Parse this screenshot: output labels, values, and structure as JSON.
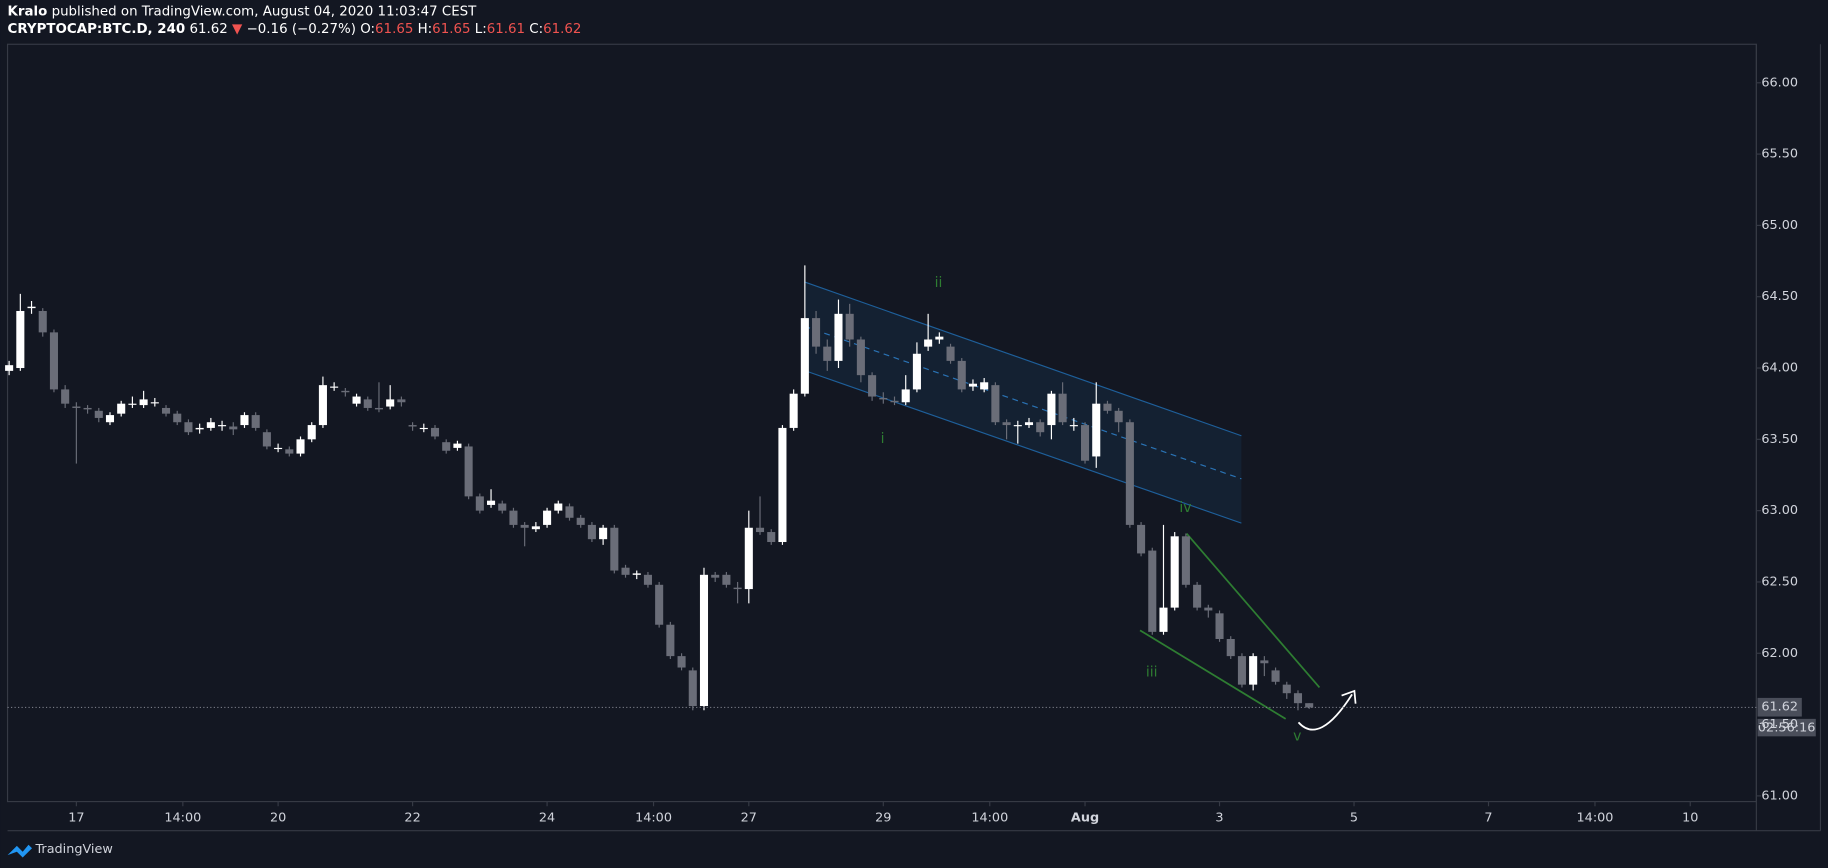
{
  "chart_data": {
    "type": "candlestick",
    "author": "Kralo",
    "published": "published on TradingView.com, August 04, 2020 11:03:47 CEST",
    "symbol": "CRYPTOCAP:BTC.D, 240",
    "last": "61.62",
    "change_arrow": "▼",
    "change": "−0.16 (−0.27%)",
    "ohlc": [
      {
        "label": "O:",
        "value": "61.65"
      },
      {
        "label": "H:",
        "value": "61.65"
      },
      {
        "label": "L:",
        "value": "61.61"
      },
      {
        "label": "C:",
        "value": "61.62"
      }
    ],
    "price_label": "61.62",
    "countdown": "02:56:16",
    "brand": "TradingView",
    "annotations": [
      "i",
      "ii",
      "iii",
      "iv",
      "v"
    ],
    "up_color": "#ffffff",
    "down_color": "#6a6d78",
    "grid": false,
    "xlim": [
      -0.14,
      155.9
    ],
    "ylim": [
      60.96,
      66.27
    ],
    "xticks": [
      {
        "value": 6,
        "label": "17"
      },
      {
        "value": 15.5,
        "label": "14:00"
      },
      {
        "value": 24,
        "label": "20"
      },
      {
        "value": 36,
        "label": "22"
      },
      {
        "value": 48,
        "label": "24"
      },
      {
        "value": 57.5,
        "label": "14:00"
      },
      {
        "value": 66,
        "label": "27"
      },
      {
        "value": 78,
        "label": "29"
      },
      {
        "value": 87.5,
        "label": "14:00"
      },
      {
        "value": 96,
        "label": "Aug"
      },
      {
        "value": 108,
        "label": "3"
      },
      {
        "value": 120,
        "label": "5"
      },
      {
        "value": 132,
        "label": "7"
      },
      {
        "value": 141.5,
        "label": "14:00"
      },
      {
        "value": 150,
        "label": "10"
      }
    ],
    "yticks": [
      {
        "value": 61,
        "label": "61.00"
      },
      {
        "value": 61.5,
        "label": "61.50"
      },
      {
        "value": 62,
        "label": "62.00"
      },
      {
        "value": 62.5,
        "label": "62.50"
      },
      {
        "value": 63,
        "label": "63.00"
      },
      {
        "value": 63.5,
        "label": "63.50"
      },
      {
        "value": 64,
        "label": "64.00"
      },
      {
        "value": 64.5,
        "label": "64.50"
      },
      {
        "value": 65,
        "label": "65.00"
      },
      {
        "value": 65.5,
        "label": "65.50"
      },
      {
        "value": 66,
        "label": "66.00"
      }
    ],
    "x": [
      0,
      1,
      2,
      3,
      4,
      5,
      6,
      7,
      8,
      9,
      10,
      11,
      12,
      13,
      14,
      15,
      16,
      17,
      18,
      19,
      20,
      21,
      22,
      23,
      24,
      25,
      26,
      27,
      28,
      29,
      30,
      31,
      32,
      33,
      34,
      35,
      36,
      37,
      38,
      39,
      40,
      41,
      42,
      43,
      44,
      45,
      46,
      47,
      48,
      49,
      50,
      51,
      52,
      53,
      54,
      55,
      56,
      57,
      58,
      59,
      60,
      61,
      62,
      63,
      64,
      65,
      66,
      67,
      68,
      69,
      70,
      71,
      72,
      73,
      74,
      75,
      76,
      77,
      78,
      79,
      80,
      81,
      82,
      83,
      84,
      85,
      86,
      87,
      88,
      89,
      90,
      91,
      92,
      93,
      94,
      95,
      96,
      97,
      98,
      99,
      100,
      101,
      102,
      103,
      104,
      105,
      106,
      107,
      108,
      109,
      110,
      111,
      112,
      113,
      114,
      115,
      116
    ],
    "open": [
      63.98,
      64.0,
      64.42,
      64.4,
      64.25,
      63.85,
      63.73,
      63.72,
      63.7,
      63.62,
      63.68,
      63.75,
      63.74,
      63.76,
      63.72,
      63.68,
      63.62,
      63.57,
      63.58,
      63.6,
      63.59,
      63.6,
      63.67,
      63.55,
      63.44,
      63.43,
      63.4,
      63.5,
      63.6,
      63.87,
      63.84,
      63.75,
      63.78,
      63.72,
      63.73,
      63.78,
      63.6,
      63.58,
      63.58,
      63.48,
      63.44,
      63.45,
      63.1,
      63.04,
      63.05,
      63.0,
      62.9,
      62.87,
      62.9,
      63.0,
      63.03,
      62.95,
      62.9,
      62.8,
      62.88,
      62.6,
      62.55,
      62.55,
      62.48,
      62.2,
      61.98,
      61.88,
      61.63,
      62.55,
      62.55,
      62.46,
      62.45,
      62.88,
      62.85,
      62.78,
      63.58,
      63.82,
      64.35,
      64.15,
      64.05,
      64.38,
      64.2,
      63.95,
      63.79,
      63.77,
      63.76,
      63.85,
      64.15,
      64.2,
      64.15,
      64.05,
      63.87,
      63.85,
      63.88,
      63.62,
      63.6,
      63.6,
      63.62,
      63.6,
      63.82,
      63.6,
      63.6,
      63.38,
      63.75,
      63.7,
      63.62,
      62.9,
      62.72,
      62.15,
      62.32,
      62.82,
      62.48,
      62.32,
      62.28,
      62.1,
      61.98,
      61.78,
      61.95,
      61.88,
      61.78,
      61.72,
      61.65
    ],
    "high": [
      64.05,
      64.52,
      64.47,
      64.42,
      64.27,
      63.88,
      63.76,
      63.74,
      63.72,
      63.69,
      63.77,
      63.8,
      63.84,
      63.79,
      63.74,
      63.7,
      63.64,
      63.61,
      63.65,
      63.63,
      63.62,
      63.69,
      63.69,
      63.57,
      63.47,
      63.45,
      63.52,
      63.62,
      63.94,
      63.9,
      63.86,
      63.82,
      63.8,
      63.9,
      63.88,
      63.8,
      63.62,
      63.61,
      63.6,
      63.5,
      63.49,
      63.47,
      63.12,
      63.15,
      63.07,
      63.02,
      62.92,
      62.92,
      63.02,
      63.07,
      63.05,
      62.97,
      62.92,
      62.9,
      62.9,
      62.62,
      62.58,
      62.57,
      62.5,
      62.22,
      62.0,
      61.9,
      62.6,
      62.57,
      62.57,
      62.5,
      63.0,
      63.1,
      62.87,
      63.6,
      63.85,
      64.72,
      64.4,
      64.2,
      64.48,
      64.45,
      64.22,
      63.97,
      63.83,
      63.8,
      63.95,
      64.18,
      64.38,
      64.25,
      64.17,
      64.07,
      63.92,
      63.93,
      63.9,
      63.64,
      63.63,
      63.65,
      63.64,
      63.84,
      63.9,
      63.65,
      63.62,
      63.9,
      63.77,
      63.72,
      63.64,
      62.92,
      62.74,
      62.9,
      62.85,
      62.84,
      62.5,
      62.34,
      62.3,
      62.12,
      62.0,
      62.0,
      61.98,
      61.9,
      61.8,
      61.74,
      61.65
    ],
    "low": [
      63.95,
      63.98,
      64.38,
      64.22,
      63.83,
      63.72,
      63.33,
      63.68,
      63.62,
      63.6,
      63.66,
      63.72,
      63.72,
      63.73,
      63.66,
      63.6,
      63.53,
      63.54,
      63.56,
      63.56,
      63.53,
      63.58,
      63.56,
      63.43,
      63.41,
      63.38,
      63.38,
      63.48,
      63.58,
      63.84,
      63.8,
      63.73,
      63.7,
      63.69,
      63.71,
      63.73,
      63.56,
      63.55,
      63.5,
      63.4,
      63.42,
      63.08,
      62.98,
      63.02,
      62.98,
      62.88,
      62.75,
      62.85,
      62.88,
      62.98,
      62.93,
      62.88,
      62.78,
      62.76,
      62.56,
      62.53,
      62.52,
      62.46,
      62.18,
      61.96,
      61.88,
      61.6,
      61.6,
      62.5,
      62.46,
      62.35,
      62.35,
      62.83,
      62.76,
      62.76,
      63.56,
      63.8,
      64.1,
      63.98,
      64.0,
      64.15,
      63.9,
      63.77,
      63.75,
      63.74,
      63.74,
      63.83,
      64.12,
      64.17,
      64.03,
      63.83,
      63.84,
      63.83,
      63.6,
      63.5,
      63.47,
      63.58,
      63.52,
      63.5,
      63.6,
      63.56,
      63.33,
      63.3,
      63.68,
      63.55,
      62.88,
      62.68,
      62.13,
      62.13,
      62.3,
      62.46,
      62.3,
      62.25,
      62.08,
      61.96,
      61.76,
      61.74,
      61.84,
      61.78,
      61.68,
      61.6,
      61.61
    ],
    "close": [
      64.02,
      64.4,
      64.43,
      64.25,
      63.85,
      63.75,
      63.72,
      63.71,
      63.65,
      63.67,
      63.75,
      63.75,
      63.78,
      63.76,
      63.68,
      63.62,
      63.55,
      63.58,
      63.62,
      63.6,
      63.57,
      63.67,
      63.58,
      63.45,
      63.44,
      63.4,
      63.5,
      63.6,
      63.88,
      63.87,
      63.83,
      63.8,
      63.72,
      63.71,
      63.78,
      63.76,
      63.59,
      63.58,
      63.52,
      63.42,
      63.47,
      63.1,
      63.0,
      63.07,
      63.0,
      62.9,
      62.88,
      62.89,
      63.0,
      63.05,
      62.95,
      62.9,
      62.8,
      62.88,
      62.58,
      62.55,
      62.56,
      62.48,
      62.2,
      61.98,
      61.9,
      61.63,
      62.55,
      62.53,
      62.48,
      62.45,
      62.88,
      62.85,
      62.78,
      63.58,
      63.82,
      64.35,
      64.15,
      64.05,
      64.38,
      64.2,
      63.95,
      63.8,
      63.78,
      63.76,
      63.85,
      64.1,
      64.2,
      64.22,
      64.05,
      63.85,
      63.89,
      63.9,
      63.62,
      63.6,
      63.6,
      63.62,
      63.55,
      63.82,
      63.62,
      63.6,
      63.35,
      63.75,
      63.7,
      63.62,
      62.9,
      62.7,
      62.15,
      62.32,
      62.82,
      62.48,
      62.32,
      62.3,
      62.1,
      61.98,
      61.78,
      61.98,
      61.93,
      61.8,
      61.72,
      61.65,
      61.62
    ]
  }
}
